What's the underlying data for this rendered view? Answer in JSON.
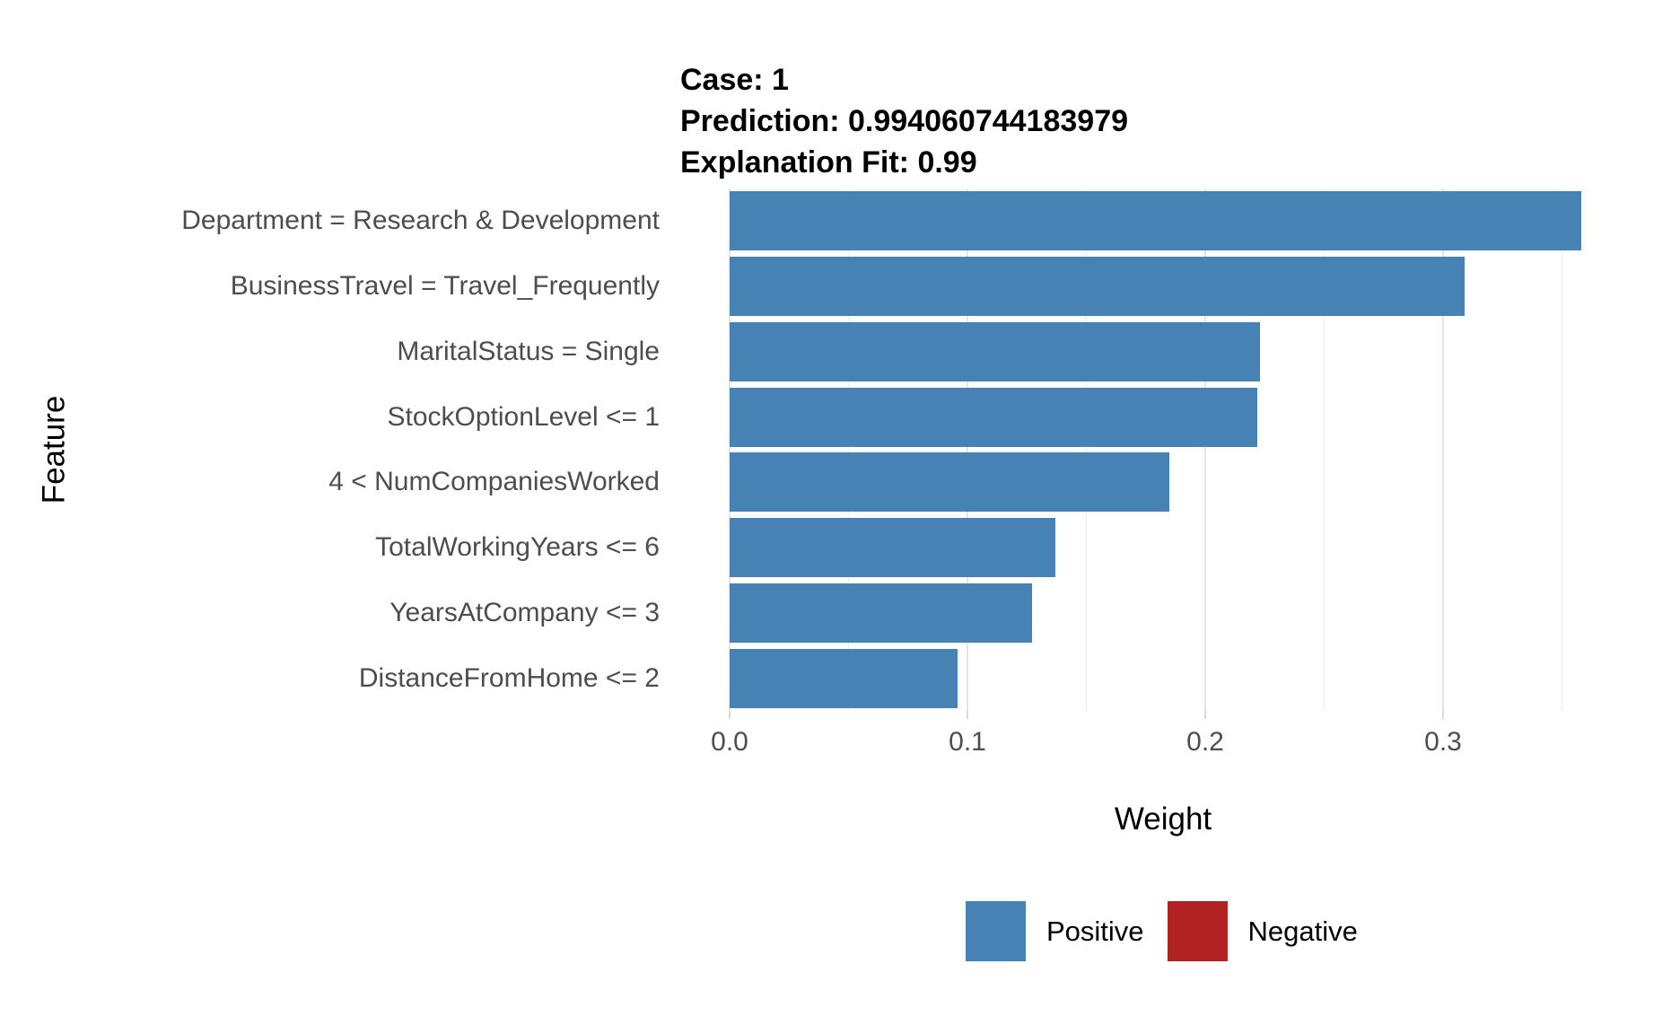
{
  "header": {
    "line1": "Case: 1",
    "line2": "Prediction: 0.994060744183979",
    "line3": "Explanation Fit: 0.99"
  },
  "chart_data": {
    "type": "bar",
    "orientation": "horizontal",
    "title": "Case: 1 — Prediction: 0.994060744183979 — Explanation Fit: 0.99",
    "xlabel": "Weight",
    "ylabel": "Feature",
    "categories": [
      "Department = Research & Development",
      "BusinessTravel = Travel_Frequently",
      "MaritalStatus = Single",
      "StockOptionLevel <= 1",
      "4 < NumCompaniesWorked",
      "TotalWorkingYears <= 6",
      "YearsAtCompany <= 3",
      "DistanceFromHome <= 2"
    ],
    "series": [
      {
        "name": "Positive",
        "values": [
          0.358,
          0.309,
          0.223,
          0.222,
          0.185,
          0.137,
          0.127,
          0.096
        ]
      }
    ],
    "xlim": [
      0,
      0.384
    ],
    "xticks": {
      "major": [
        0.0,
        0.1,
        0.2,
        0.3
      ],
      "labels": [
        "0.0",
        "0.1",
        "0.2",
        "0.3"
      ],
      "minor": [
        0.05,
        0.15,
        0.25,
        0.35
      ]
    },
    "grid": true,
    "legend": {
      "position": "bottom",
      "entries": [
        {
          "label": "Positive",
          "color": "#4682B4"
        },
        {
          "label": "Negative",
          "color": "#B22222"
        }
      ]
    },
    "colors": {
      "positive": "#4682B4",
      "negative": "#B22222",
      "axis_text": "#4d4d4d",
      "grid_major": "#E5E5E5",
      "grid_minor": "#ECECEC",
      "tick_mark": "#D9D9D9"
    }
  }
}
